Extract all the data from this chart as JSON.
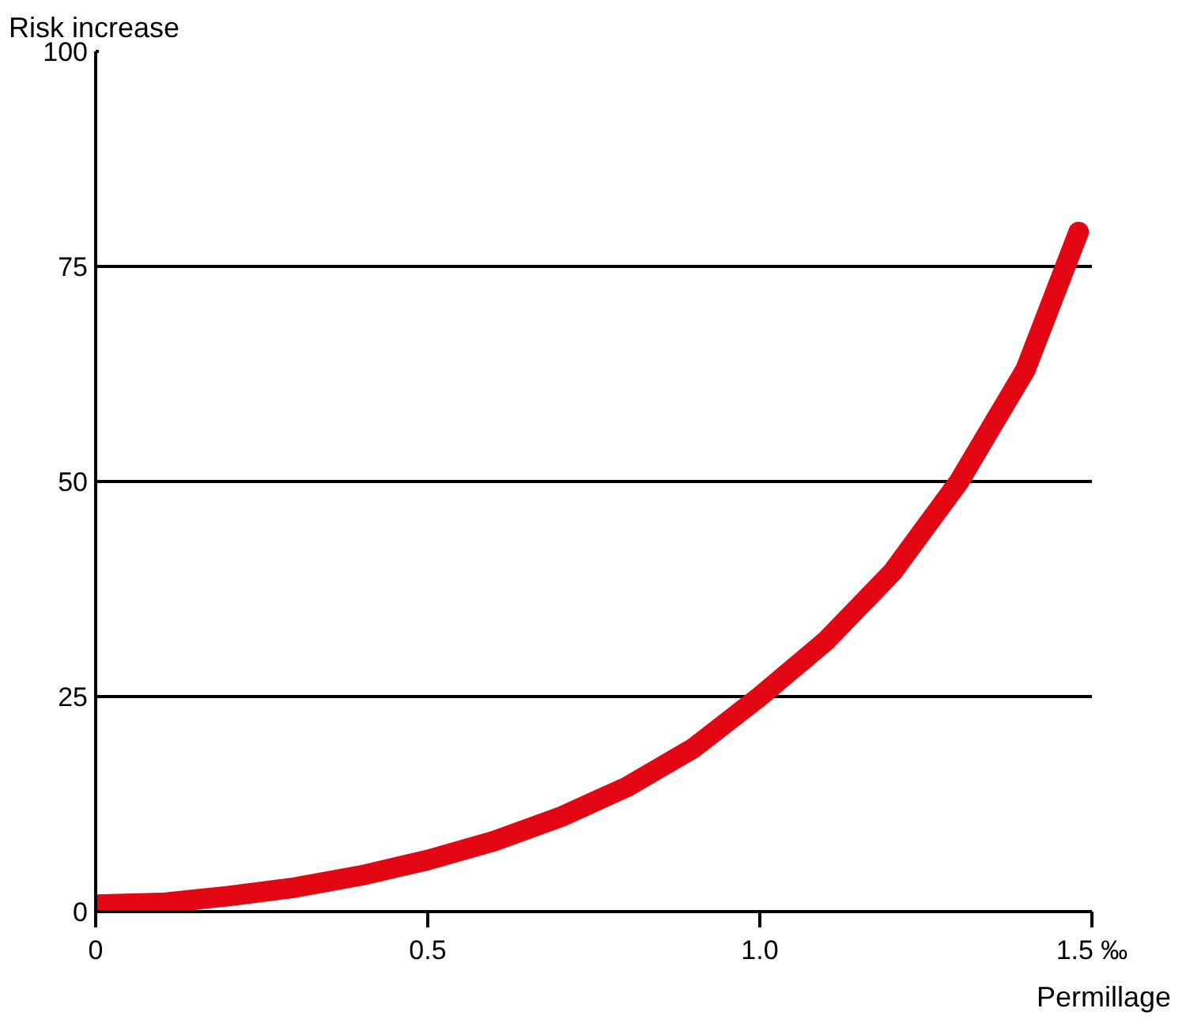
{
  "chart_data": {
    "type": "line",
    "ylabel": "Risk increase",
    "xlabel": "Permillage",
    "x": [
      0,
      0.1,
      0.2,
      0.3,
      0.4,
      0.5,
      0.6,
      0.7,
      0.8,
      0.9,
      1.0,
      1.1,
      1.2,
      1.3,
      1.4,
      1.48
    ],
    "series": [
      {
        "color": "#e30613",
        "values": [
          0.8,
          1.0,
          1.8,
          2.8,
          4.2,
          6,
          8.2,
          11,
          14.5,
          19,
          25,
          31.5,
          39.5,
          50,
          63,
          79
        ]
      }
    ],
    "xlim": [
      0,
      1.5
    ],
    "ylim": [
      0,
      100
    ],
    "xticks": [
      0,
      0.5,
      {
        "value": 1.0,
        "label": "1.0"
      },
      {
        "value": 1.5,
        "label": "1.5 ‰"
      }
    ],
    "yticks": [
      0,
      25,
      50,
      75,
      100
    ],
    "grid": "y",
    "line_style": "solid"
  }
}
